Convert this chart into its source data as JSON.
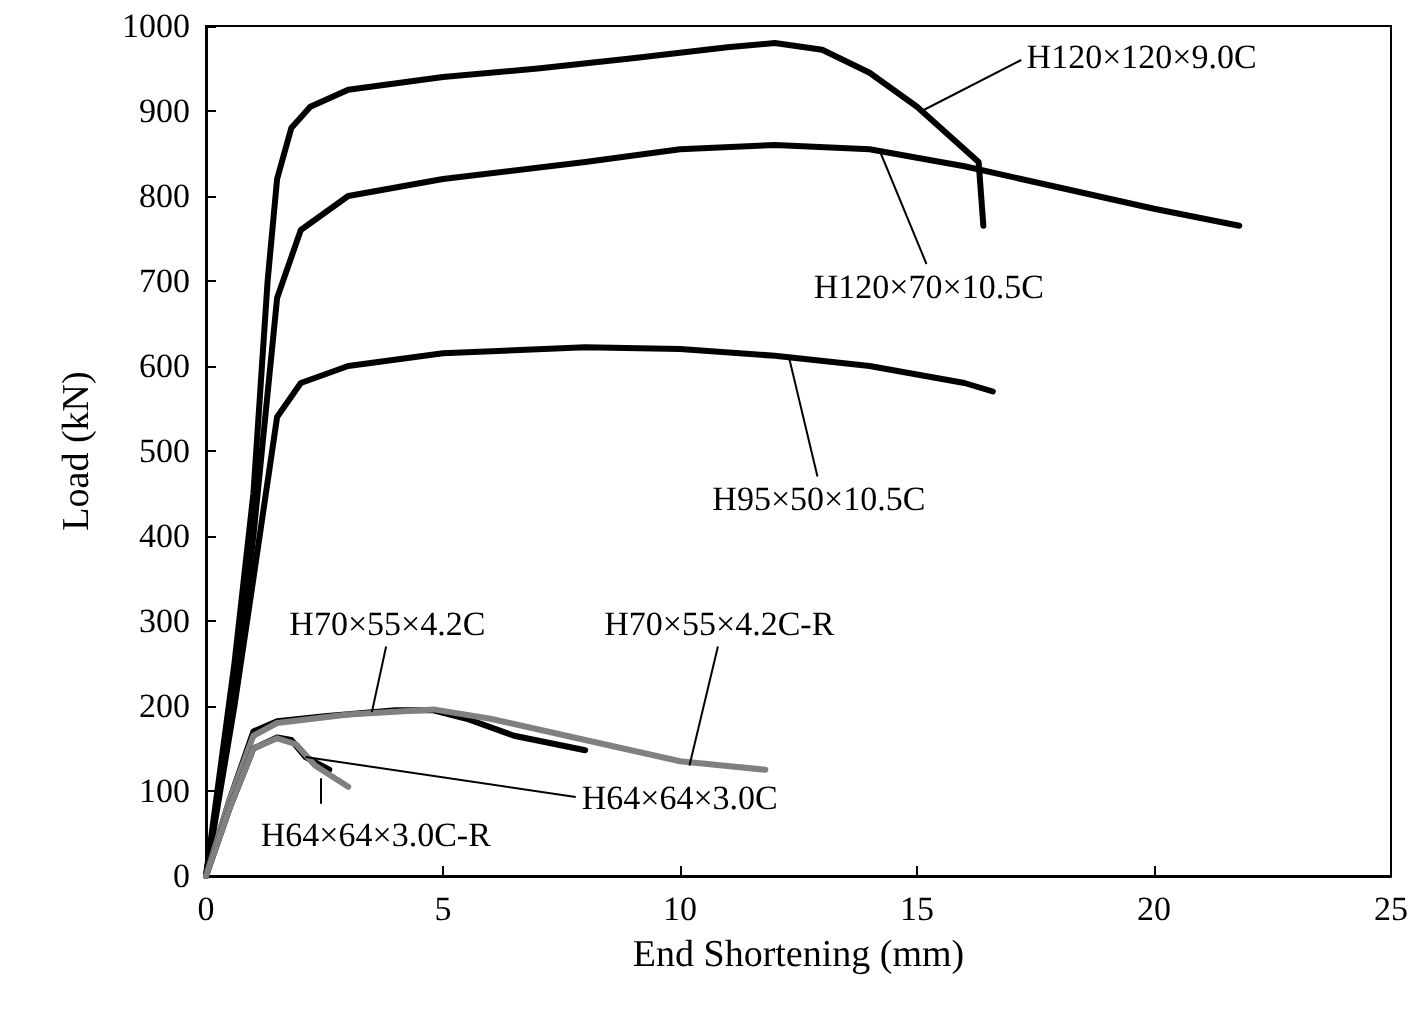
{
  "chart_data": {
    "type": "line",
    "xlabel": "End Shortening (mm)",
    "ylabel": "Load (kN)",
    "xlim": [
      0,
      25
    ],
    "xticks": [
      0,
      5,
      10,
      15,
      20,
      25
    ],
    "ylim": [
      0,
      1000
    ],
    "yticks": [
      0,
      100,
      200,
      300,
      400,
      500,
      600,
      700,
      800,
      900,
      1000
    ],
    "grid": false,
    "marker": "none",
    "line_style": "solid",
    "series": [
      {
        "color": "#000000",
        "x": [
          0,
          0.6,
          1.0,
          1.3,
          1.5,
          1.8,
          2.2,
          3,
          5,
          7,
          9,
          11,
          12,
          13,
          14,
          15,
          15.8,
          16.3,
          16.4
        ],
        "values": [
          0,
          250,
          450,
          700,
          820,
          880,
          905,
          925,
          940,
          950,
          962,
          975,
          980,
          972,
          945,
          905,
          865,
          840,
          765
        ]
      },
      {
        "color": "#000000",
        "x": [
          0,
          0.6,
          1.0,
          1.5,
          2,
          3,
          5,
          8,
          10,
          12,
          14,
          16,
          18,
          20,
          21.8
        ],
        "values": [
          0,
          220,
          400,
          680,
          760,
          800,
          820,
          840,
          855,
          860,
          855,
          835,
          810,
          785,
          765
        ]
      },
      {
        "color": "#000000",
        "x": [
          0,
          0.6,
          1.0,
          1.5,
          2,
          3,
          5,
          8,
          10,
          12,
          14,
          16,
          16.6
        ],
        "values": [
          0,
          200,
          350,
          540,
          580,
          600,
          615,
          622,
          620,
          612,
          600,
          580,
          570
        ]
      },
      {
        "color": "#000000",
        "x": [
          0,
          0.5,
          1.0,
          1.5,
          2.5,
          4,
          4.8,
          5.5,
          6.5,
          8
        ],
        "values": [
          0,
          90,
          170,
          182,
          188,
          195,
          195,
          185,
          165,
          148
        ]
      },
      {
        "color": "#808080",
        "x": [
          0,
          0.5,
          1.0,
          1.5,
          3,
          4.8,
          6,
          8,
          10,
          11.8
        ],
        "values": [
          0,
          90,
          165,
          180,
          190,
          196,
          185,
          160,
          135,
          125
        ]
      },
      {
        "color": "#000000",
        "x": [
          0,
          0.5,
          1.0,
          1.5,
          1.8,
          2.1,
          2.6
        ],
        "values": [
          0,
          80,
          150,
          163,
          160,
          140,
          125
        ]
      },
      {
        "color": "#808080",
        "x": [
          0,
          0.5,
          1.0,
          1.5,
          1.9,
          2.3,
          3
        ],
        "values": [
          0,
          80,
          150,
          162,
          155,
          130,
          105
        ]
      }
    ],
    "annotations": [
      {
        "text": "H120×120×9.0C",
        "x": 15.1,
        "y": 900
      },
      {
        "text": "H120×70×10.5C",
        "x": 14.2,
        "y": 855
      },
      {
        "text": "H95×50×10.5C",
        "x": 12.3,
        "y": 610
      },
      {
        "text": "H70×55×4.2C",
        "x": 3.5,
        "y": 193
      },
      {
        "text": "H70×55×4.2C-R",
        "x": 10.2,
        "y": 130
      },
      {
        "text": "H64×64×3.0C",
        "x": 2.1,
        "y": 140
      },
      {
        "text": "H64×64×3.0C-R",
        "x": 2.4,
        "y": 115
      }
    ]
  }
}
